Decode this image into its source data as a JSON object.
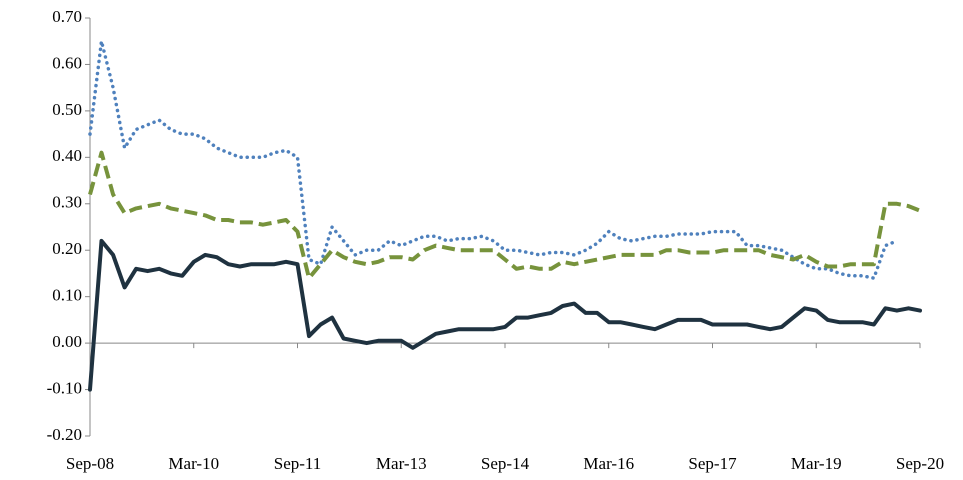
{
  "chart_data": {
    "type": "line",
    "categories": [
      "Sep-08",
      null,
      null,
      null,
      null,
      null,
      null,
      null,
      null,
      "Mar-10",
      null,
      null,
      null,
      null,
      null,
      null,
      null,
      null,
      "Sep-11",
      null,
      null,
      null,
      null,
      null,
      null,
      null,
      null,
      "Mar-13",
      null,
      null,
      null,
      null,
      null,
      null,
      null,
      null,
      "Sep-14",
      null,
      null,
      null,
      null,
      null,
      null,
      null,
      null,
      "Mar-16",
      null,
      null,
      null,
      null,
      null,
      null,
      null,
      null,
      "Sep-17",
      null,
      null,
      null,
      null,
      null,
      null,
      null,
      null,
      "Mar-19",
      null,
      null,
      null,
      null,
      null,
      null,
      null,
      null,
      "Sep-20"
    ],
    "series": [
      {
        "color": "#4f81bd",
        "style": "dotted",
        "values": [
          0.45,
          0.65,
          0.55,
          0.42,
          0.46,
          0.47,
          0.48,
          0.46,
          0.45,
          0.45,
          0.44,
          0.42,
          0.41,
          0.4,
          0.4,
          0.4,
          0.41,
          0.415,
          0.4,
          0.18,
          0.17,
          0.25,
          0.22,
          0.19,
          0.2,
          0.2,
          0.22,
          0.21,
          0.22,
          0.23,
          0.23,
          0.22,
          0.225,
          0.225,
          0.23,
          0.22,
          0.2,
          0.2,
          0.195,
          0.19,
          0.195,
          0.195,
          0.19,
          0.2,
          0.215,
          0.24,
          0.225,
          0.22,
          0.225,
          0.23,
          0.23,
          0.235,
          0.235,
          0.235,
          0.24,
          0.24,
          0.24,
          0.21,
          0.21,
          0.205,
          0.2,
          0.185,
          0.17,
          0.16,
          0.16,
          0.15,
          0.145,
          0.145,
          0.14,
          0.21,
          0.22,
          null,
          null
        ]
      },
      {
        "color": "#77933c",
        "style": "dashed",
        "values": [
          0.32,
          0.41,
          0.32,
          0.28,
          0.29,
          0.295,
          0.3,
          0.29,
          0.285,
          0.28,
          0.275,
          0.265,
          0.265,
          0.26,
          0.26,
          0.255,
          0.26,
          0.265,
          0.24,
          0.14,
          0.17,
          0.2,
          0.185,
          0.175,
          0.17,
          0.175,
          0.185,
          0.185,
          0.18,
          0.2,
          0.21,
          0.205,
          0.2,
          0.2,
          0.2,
          0.2,
          0.18,
          0.16,
          0.165,
          0.16,
          0.16,
          0.175,
          0.17,
          0.175,
          0.18,
          0.185,
          0.19,
          0.19,
          0.19,
          0.19,
          0.2,
          0.2,
          0.195,
          0.195,
          0.195,
          0.2,
          0.2,
          0.2,
          0.2,
          0.19,
          0.185,
          0.18,
          0.19,
          0.175,
          0.165,
          0.165,
          0.17,
          0.17,
          0.17,
          0.3,
          0.3,
          0.295,
          0.285
        ]
      },
      {
        "color": "#1f3240",
        "style": "solid",
        "values": [
          -0.1,
          0.22,
          0.19,
          0.12,
          0.16,
          0.155,
          0.16,
          0.15,
          0.145,
          0.175,
          0.19,
          0.185,
          0.17,
          0.165,
          0.17,
          0.17,
          0.17,
          0.175,
          0.17,
          0.015,
          0.04,
          0.055,
          0.01,
          0.005,
          0.0,
          0.005,
          0.005,
          0.005,
          -0.01,
          0.005,
          0.02,
          0.025,
          0.03,
          0.03,
          0.03,
          0.03,
          0.035,
          0.055,
          0.055,
          0.06,
          0.065,
          0.08,
          0.085,
          0.065,
          0.065,
          0.045,
          0.045,
          0.04,
          0.035,
          0.03,
          0.04,
          0.05,
          0.05,
          0.05,
          0.04,
          0.04,
          0.04,
          0.04,
          0.035,
          0.03,
          0.035,
          0.055,
          0.075,
          0.07,
          0.05,
          0.045,
          0.045,
          0.045,
          0.04,
          0.075,
          0.07,
          0.075,
          0.07
        ]
      }
    ],
    "ylim": [
      -0.2,
      0.7
    ],
    "yticks": [
      {
        "value": -0.2,
        "label": "-0.20"
      },
      {
        "value": -0.1,
        "label": "-0.10"
      },
      {
        "value": 0,
        "label": "0.00"
      },
      {
        "value": 0.1,
        "label": "0.10"
      },
      {
        "value": 0.2,
        "label": "0.20"
      },
      {
        "value": 0.3,
        "label": "0.30"
      },
      {
        "value": 0.4,
        "label": "0.40"
      },
      {
        "value": 0.5,
        "label": "0.50"
      },
      {
        "value": 0.6,
        "label": "0.60"
      },
      {
        "value": 0.7,
        "label": "0.70"
      }
    ],
    "grid": false
  }
}
